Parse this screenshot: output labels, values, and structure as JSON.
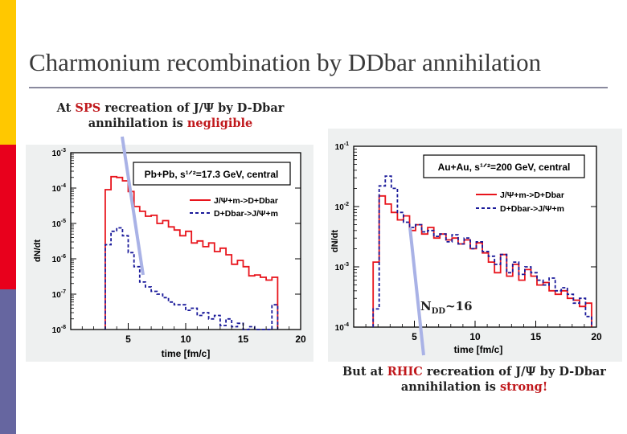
{
  "slide": {
    "title": "Charmonium recombination by DDbar annihilation"
  },
  "accent_bar": {
    "colors": [
      "#ffc800",
      "#e8001c",
      "#6666a0"
    ]
  },
  "captions": {
    "sps": {
      "prefix": "At",
      "highlight": "SPS",
      "middle": "recreation of J/Ψ by D-Dbar",
      "line2_prefix": "annihilation is",
      "line2_highlight": "negligible"
    },
    "rhic": {
      "prefix": "But at",
      "highlight": "RHIC",
      "middle": "recreation of J/Ψ by D-Dbar",
      "line2_prefix": "annihilation is",
      "line2_highlight": "strong!"
    }
  },
  "annotation": {
    "ndd_label": "N",
    "ndd_sub": "DD",
    "ndd_value": "~16"
  },
  "colors": {
    "red_series": "#e8141c",
    "blue_series": "#1a1a9a",
    "highlight_text": "#c0181c"
  },
  "chart_data": [
    {
      "type": "line",
      "step": true,
      "log_y": true,
      "title": "Pb+Pb, s¹ᐟ²=17.3 GeV, central",
      "xlabel": "time [fm/c]",
      "ylabel": "dN/dt",
      "xlim": [
        0,
        20
      ],
      "ylim": [
        1e-08,
        0.001
      ],
      "x_ticks": [
        5,
        10,
        15,
        20
      ],
      "x_tick_labels": [
        "5",
        "10",
        "15",
        "20"
      ],
      "y_ticks": [
        0.001,
        0.0001,
        1e-05,
        1e-06,
        1e-07,
        1e-08
      ],
      "y_tick_labels": [
        "10-3",
        "10-4",
        "10-5",
        "10-6",
        "10-7",
        "10-8"
      ],
      "legend_position": "top-right",
      "bin_edges": [
        3,
        3.5,
        4,
        4.5,
        5,
        5.5,
        6,
        6.5,
        7,
        7.5,
        8,
        8.5,
        9,
        9.5,
        10,
        10.5,
        11,
        11.5,
        12,
        12.5,
        13,
        13.5,
        14,
        14.5,
        15,
        15.5,
        16,
        16.5,
        17,
        17.5,
        18
      ],
      "series": [
        {
          "name": "J/Ψ+m->D+Dbar",
          "color": "red",
          "values": [
            9e-05,
            0.00021,
            0.0002,
            0.00016,
            8e-05,
            3e-05,
            2.2e-05,
            1.6e-05,
            1.7e-05,
            1e-05,
            1.2e-05,
            8e-06,
            6.5e-06,
            4.5e-06,
            6e-06,
            2.8e-06,
            3.2e-06,
            2.2e-06,
            2.8e-06,
            1.6e-06,
            2e-06,
            1.3e-06,
            7e-07,
            9e-07,
            6e-07,
            3.3e-07,
            3.5e-07,
            3e-07,
            2.5e-07,
            3e-07
          ]
        },
        {
          "name": "D+Dbar->J/Ψ+m",
          "color": "blue",
          "values": [
            2.5e-06,
            6e-06,
            7.5e-06,
            4.5e-06,
            1.5e-06,
            6e-07,
            2.2e-07,
            1.6e-07,
            1.2e-07,
            1e-07,
            8e-08,
            6e-08,
            5e-08,
            5e-08,
            3.5e-08,
            4e-08,
            2.5e-08,
            3e-08,
            2e-08,
            2.5e-08,
            1.3e-08,
            2e-08,
            1.2e-08,
            1.5e-08,
            8e-09,
            1.2e-08,
            8e-09,
            1e-08,
            8e-09,
            5e-08
          ]
        }
      ]
    },
    {
      "type": "line",
      "step": true,
      "log_y": true,
      "title": "Au+Au, s¹ᐟ²=200 GeV, central",
      "xlabel": "time [fm/c]",
      "ylabel": "dN/dt",
      "xlim": [
        0,
        20
      ],
      "ylim": [
        0.0001,
        0.1
      ],
      "x_ticks": [
        5,
        10,
        15,
        20
      ],
      "x_tick_labels": [
        "5",
        "10",
        "15",
        "20"
      ],
      "y_ticks": [
        0.1,
        0.01,
        0.001,
        0.0001
      ],
      "y_tick_labels": [
        "10-1",
        "10-2",
        "10-3",
        "10-4"
      ],
      "legend_position": "top-right",
      "bin_edges": [
        1.6,
        2.1,
        2.6,
        3.1,
        3.6,
        4.1,
        4.6,
        5.1,
        5.6,
        6.1,
        6.6,
        7.1,
        7.6,
        8.1,
        8.6,
        9.1,
        9.6,
        10.1,
        10.6,
        11.1,
        11.6,
        12.1,
        12.6,
        13.1,
        13.6,
        14.1,
        14.6,
        15.1,
        15.6,
        16.1,
        16.6,
        17.1,
        17.6,
        18.1,
        18.6,
        19.1,
        19.6
      ],
      "series": [
        {
          "name": "J/Ψ+m->D+Dbar",
          "color": "red",
          "values": [
            0.0012,
            0.015,
            0.011,
            0.008,
            0.006,
            0.007,
            0.004,
            0.005,
            0.0035,
            0.0045,
            0.003,
            0.0035,
            0.0028,
            0.003,
            0.0024,
            0.0028,
            0.002,
            0.0025,
            0.0017,
            0.0012,
            0.0008,
            0.0016,
            0.0007,
            0.0011,
            0.0006,
            0.0009,
            0.0007,
            0.0005,
            0.00055,
            0.0004,
            0.00035,
            0.0004,
            0.0003,
            0.00028,
            0.00022,
            0.00025
          ]
        },
        {
          "name": "D+Dbar->J/Ψ+m",
          "color": "blue",
          "values": [
            0.0002,
            0.022,
            0.032,
            0.02,
            0.008,
            0.0055,
            0.0045,
            0.005,
            0.0038,
            0.004,
            0.0032,
            0.0035,
            0.0026,
            0.0034,
            0.0024,
            0.003,
            0.002,
            0.0026,
            0.0018,
            0.0015,
            0.0011,
            0.0016,
            0.0008,
            0.0012,
            0.00075,
            0.001,
            0.0008,
            0.0006,
            0.0005,
            0.00065,
            0.0004,
            0.00045,
            0.00035,
            0.00025,
            0.0003,
            0.00015
          ]
        }
      ]
    }
  ]
}
